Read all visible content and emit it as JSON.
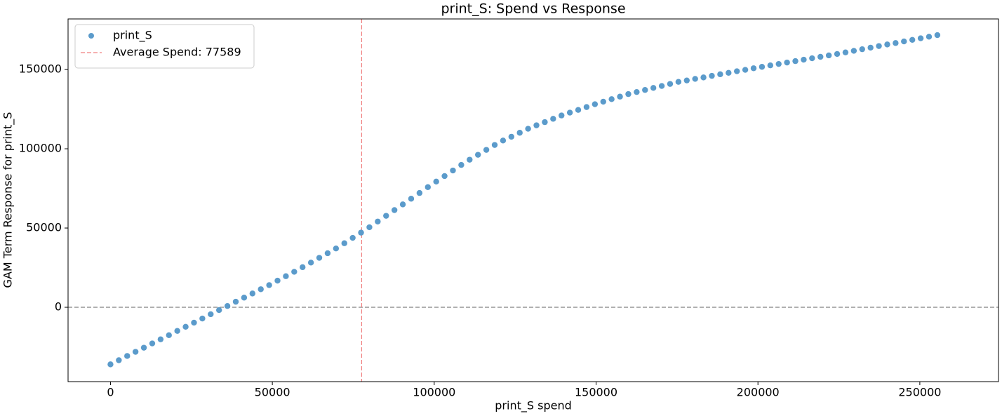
{
  "chart_data": {
    "type": "scatter",
    "title": "print_S: Spend vs Response",
    "xlabel": "print_S spend",
    "ylabel": "GAM Term Response for print_S",
    "x": [
      0,
      2580,
      5160,
      7740,
      10320,
      12900,
      15480,
      18060,
      20640,
      23220,
      25800,
      28380,
      30960,
      33540,
      36120,
      38700,
      41280,
      43860,
      46440,
      49020,
      51600,
      54180,
      56760,
      59340,
      61920,
      64500,
      67080,
      69660,
      72240,
      74820,
      77400,
      79980,
      82560,
      85140,
      87720,
      90300,
      92880,
      95460,
      98040,
      100620,
      103200,
      105780,
      108360,
      110940,
      113520,
      116100,
      118680,
      121260,
      123840,
      126420,
      129000,
      131580,
      134160,
      136740,
      139320,
      141900,
      144480,
      147060,
      149640,
      152220,
      154800,
      157380,
      159960,
      162540,
      165120,
      167700,
      170280,
      172860,
      175440,
      178020,
      180600,
      183180,
      185760,
      188340,
      190920,
      193500,
      196080,
      198660,
      201240,
      203820,
      206400,
      208980,
      211560,
      214140,
      216720,
      219300,
      221880,
      224460,
      227040,
      229620,
      232200,
      234780,
      237360,
      239940,
      242520,
      245100,
      247680,
      250260,
      252840,
      255420
    ],
    "series": [
      {
        "name": "print_S",
        "color": "#5b9bcb",
        "values": [
          -36000,
          -33400,
          -30700,
          -28100,
          -25500,
          -22800,
          -20200,
          -17600,
          -14900,
          -12300,
          -9700,
          -7100,
          -4400,
          -1800,
          800,
          3500,
          6100,
          8700,
          11400,
          14000,
          16800,
          19600,
          22400,
          25300,
          28200,
          31200,
          34100,
          37100,
          40400,
          43800,
          47100,
          50500,
          54100,
          57700,
          61300,
          64900,
          68500,
          72100,
          75800,
          79300,
          82800,
          86300,
          89800,
          93100,
          96200,
          99300,
          102400,
          105200,
          107600,
          110100,
          112600,
          114800,
          116800,
          118900,
          121000,
          122800,
          124500,
          126300,
          128100,
          129700,
          131300,
          132900,
          134500,
          135800,
          137100,
          138400,
          139600,
          140900,
          142200,
          143100,
          144100,
          145000,
          146000,
          147000,
          147900,
          148900,
          149800,
          150800,
          151700,
          152600,
          153500,
          154400,
          155300,
          156200,
          157100,
          158000,
          158900,
          159800,
          160800,
          161800,
          162800,
          163800,
          164800,
          165800,
          166700,
          167700,
          168700,
          169700,
          170700,
          171700
        ]
      }
    ],
    "vline": {
      "value": 77589,
      "name": "Average Spend: 77589",
      "color": "#f08080"
    },
    "hline": {
      "value": 0,
      "color": "#808080"
    },
    "xlim": [
      -13100,
      274300
    ],
    "ylim": [
      -46900,
      181900
    ],
    "xticks": [
      0,
      50000,
      100000,
      150000,
      200000,
      250000
    ],
    "yticks": [
      0,
      50000,
      100000,
      150000
    ],
    "grid": false,
    "legend": "upper left"
  }
}
